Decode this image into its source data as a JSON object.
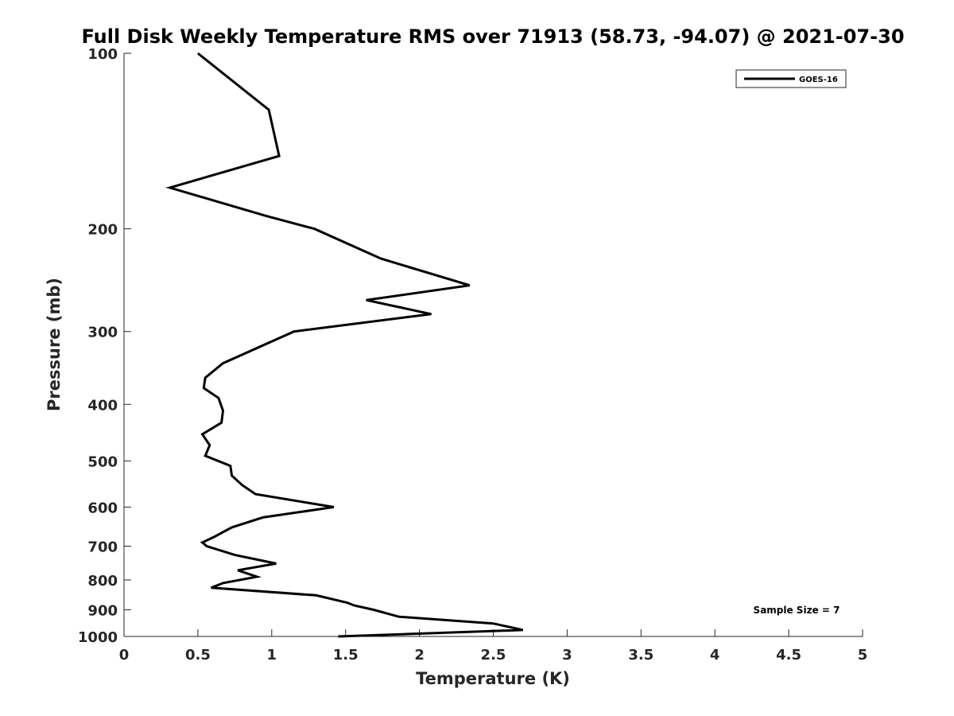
{
  "chart_data": {
    "type": "line",
    "title": "Full Disk Weekly Temperature RMS over 71913 (58.73, -94.07) @ 2021-07-30",
    "xlabel": "Temperature (K)",
    "ylabel": "Pressure (mb)",
    "xlim": [
      0,
      5
    ],
    "ylim": [
      100,
      1000
    ],
    "y_scale": "log",
    "y_reversed": true,
    "x_ticks": [
      "0",
      "0.5",
      "1",
      "1.5",
      "2",
      "2.5",
      "3",
      "3.5",
      "4",
      "4.5",
      "5"
    ],
    "y_ticks": [
      "100",
      "200",
      "300",
      "400",
      "500",
      "600",
      "700",
      "800",
      "900",
      "1000"
    ],
    "legend": {
      "entries": [
        "GOES-16"
      ],
      "placement": "top-right"
    },
    "annotation": "Sample Size = 7",
    "grid": false,
    "series": [
      {
        "name": "GOES-16",
        "color": "#000000",
        "points": [
          [
            0.5,
            100
          ],
          [
            0.98,
            125
          ],
          [
            1.05,
            150
          ],
          [
            0.31,
            170
          ],
          [
            0.96,
            190
          ],
          [
            1.29,
            200
          ],
          [
            1.74,
            225
          ],
          [
            2.34,
            250
          ],
          [
            1.64,
            265
          ],
          [
            2.08,
            280
          ],
          [
            1.15,
            300
          ],
          [
            0.67,
            340
          ],
          [
            0.55,
            360
          ],
          [
            0.54,
            375
          ],
          [
            0.64,
            390
          ],
          [
            0.67,
            410
          ],
          [
            0.66,
            430
          ],
          [
            0.53,
            450
          ],
          [
            0.58,
            470
          ],
          [
            0.55,
            490
          ],
          [
            0.72,
            510
          ],
          [
            0.73,
            530
          ],
          [
            0.8,
            550
          ],
          [
            0.89,
            570
          ],
          [
            1.42,
            600
          ],
          [
            0.94,
            625
          ],
          [
            0.73,
            650
          ],
          [
            0.61,
            675
          ],
          [
            0.53,
            690
          ],
          [
            0.56,
            700
          ],
          [
            0.75,
            725
          ],
          [
            1.03,
            750
          ],
          [
            0.77,
            770
          ],
          [
            0.9,
            790
          ],
          [
            0.67,
            810
          ],
          [
            0.59,
            825
          ],
          [
            1.3,
            850
          ],
          [
            1.51,
            875
          ],
          [
            1.56,
            885
          ],
          [
            1.69,
            900
          ],
          [
            1.86,
            925
          ],
          [
            2.5,
            950
          ],
          [
            2.7,
            975
          ],
          [
            1.45,
            1000
          ]
        ]
      }
    ]
  }
}
